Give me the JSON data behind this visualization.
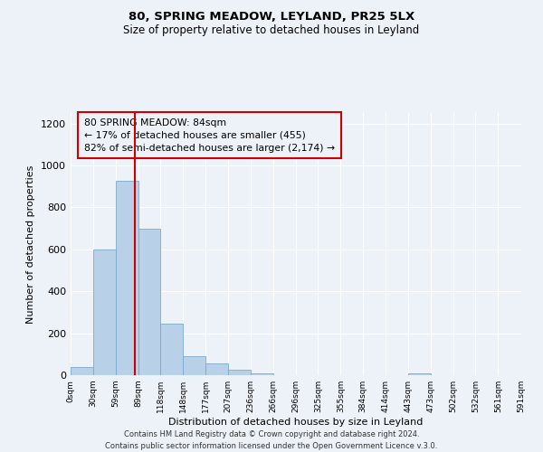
{
  "title": "80, SPRING MEADOW, LEYLAND, PR25 5LX",
  "subtitle": "Size of property relative to detached houses in Leyland",
  "xlabel": "Distribution of detached houses by size in Leyland",
  "ylabel": "Number of detached properties",
  "bar_edges": [
    0,
    29.5,
    59,
    88.5,
    118,
    147.5,
    177,
    206.5,
    236,
    265.5,
    295,
    324.5,
    354,
    383.5,
    413,
    442.5,
    472,
    501.5,
    531,
    560.5,
    591
  ],
  "bar_heights": [
    40,
    600,
    925,
    700,
    245,
    90,
    55,
    25,
    10,
    0,
    0,
    0,
    0,
    0,
    0,
    10,
    0,
    0,
    0,
    0
  ],
  "bar_color": "#b8d0e8",
  "bar_edgecolor": "#7aaaca",
  "property_line_x": 84,
  "property_line_color": "#cc0000",
  "ylim": [
    0,
    1250
  ],
  "xlim": [
    0,
    591
  ],
  "xtick_labels": [
    "0sqm",
    "30sqm",
    "59sqm",
    "89sqm",
    "118sqm",
    "148sqm",
    "177sqm",
    "207sqm",
    "236sqm",
    "266sqm",
    "296sqm",
    "325sqm",
    "355sqm",
    "384sqm",
    "414sqm",
    "443sqm",
    "473sqm",
    "502sqm",
    "532sqm",
    "561sqm",
    "591sqm"
  ],
  "xtick_positions": [
    0,
    29.5,
    59,
    88.5,
    118,
    147.5,
    177,
    206.5,
    236,
    265.5,
    295,
    324.5,
    354,
    383.5,
    413,
    442.5,
    472,
    501.5,
    531,
    560.5,
    591
  ],
  "ytick_labels": [
    "0",
    "200",
    "400",
    "600",
    "800",
    "1000",
    "1200"
  ],
  "ytick_positions": [
    0,
    200,
    400,
    600,
    800,
    1000,
    1200
  ],
  "annotation_title": "80 SPRING MEADOW: 84sqm",
  "annotation_line1": "← 17% of detached houses are smaller (455)",
  "annotation_line2": "82% of semi-detached houses are larger (2,174) →",
  "annotation_box_color": "#cc0000",
  "footer_line1": "Contains HM Land Registry data © Crown copyright and database right 2024.",
  "footer_line2": "Contains public sector information licensed under the Open Government Licence v.3.0.",
  "bg_color": "#edf2f9",
  "grid_color": "#ffffff"
}
